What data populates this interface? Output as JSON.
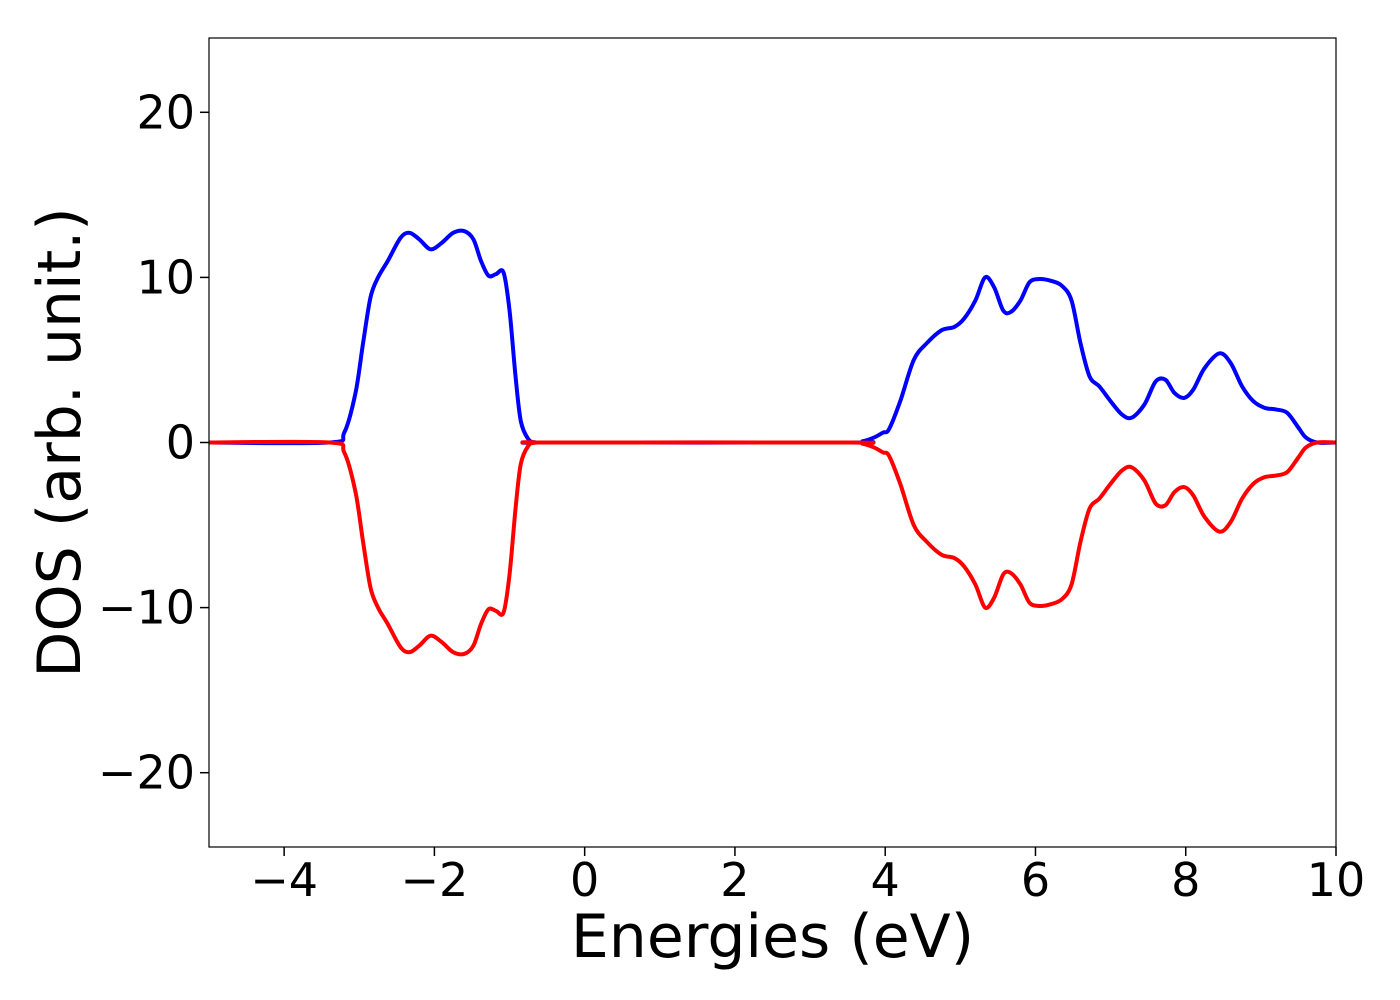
{
  "chart_data": {
    "type": "line",
    "title": "",
    "xlabel": "Energies (eV)",
    "ylabel": "DOS (arb. unit.)",
    "xlim": [
      -5,
      10
    ],
    "ylim": [
      -24.5,
      24.5
    ],
    "x_ticks": [
      -4,
      -2,
      0,
      2,
      4,
      6,
      8,
      10
    ],
    "x_tick_labels": [
      "−4",
      "−2",
      "0",
      "2",
      "4",
      "6",
      "8",
      "10"
    ],
    "y_ticks": [
      -20,
      -10,
      0,
      10,
      20
    ],
    "y_tick_labels": [
      "−20",
      "−10",
      "0",
      "10",
      "20"
    ],
    "grid": false,
    "legend": "none",
    "series": [
      {
        "color": "#0000ff",
        "x": [
          -5.0,
          -3.4,
          -3.2,
          -3.05,
          -2.95,
          -2.85,
          -2.75,
          -2.62,
          -2.45,
          -2.33,
          -2.2,
          -2.05,
          -1.9,
          -1.75,
          -1.6,
          -1.48,
          -1.38,
          -1.28,
          -1.18,
          -1.08,
          -1.0,
          -0.92,
          -0.85,
          -0.75,
          -0.65,
          -0.5,
          3.5,
          3.7,
          3.85,
          3.97,
          4.05,
          4.2,
          4.38,
          4.55,
          4.75,
          4.92,
          5.05,
          5.2,
          5.33,
          5.45,
          5.57,
          5.67,
          5.8,
          5.92,
          6.05,
          6.2,
          6.35,
          6.48,
          6.6,
          6.72,
          6.85,
          7.0,
          7.15,
          7.28,
          7.45,
          7.6,
          7.73,
          7.85,
          7.98,
          8.1,
          8.25,
          8.45,
          8.6,
          8.75,
          8.9,
          9.05,
          9.2,
          9.35,
          9.5,
          9.6,
          9.75,
          10.0
        ],
        "y": [
          0,
          0,
          0.6,
          3.0,
          6.0,
          8.8,
          10.0,
          11.0,
          12.4,
          12.7,
          12.3,
          11.7,
          12.1,
          12.7,
          12.8,
          12.3,
          11.0,
          10.1,
          10.2,
          10.3,
          8.0,
          4.0,
          1.3,
          0.2,
          0,
          0,
          0,
          0.08,
          0.3,
          0.6,
          0.8,
          2.5,
          5.0,
          6.0,
          6.8,
          7.0,
          7.5,
          8.6,
          10.0,
          9.4,
          8.0,
          7.9,
          8.6,
          9.7,
          9.9,
          9.8,
          9.5,
          8.6,
          6.0,
          4.0,
          3.4,
          2.5,
          1.7,
          1.5,
          2.3,
          3.7,
          3.8,
          3.0,
          2.7,
          3.2,
          4.5,
          5.4,
          4.8,
          3.4,
          2.5,
          2.1,
          2.0,
          1.8,
          0.9,
          0.3,
          0,
          0
        ]
      },
      {
        "color": "#ff0000",
        "x": [
          -5.0,
          -3.4,
          -3.2,
          -3.05,
          -2.95,
          -2.85,
          -2.75,
          -2.62,
          -2.45,
          -2.33,
          -2.2,
          -2.05,
          -1.9,
          -1.75,
          -1.6,
          -1.48,
          -1.38,
          -1.28,
          -1.18,
          -1.08,
          -1.0,
          -0.92,
          -0.85,
          -0.75,
          -0.65,
          -0.5,
          3.5,
          3.7,
          3.85,
          3.97,
          4.05,
          4.2,
          4.38,
          4.55,
          4.75,
          4.92,
          5.05,
          5.2,
          5.33,
          5.45,
          5.57,
          5.67,
          5.8,
          5.92,
          6.05,
          6.2,
          6.35,
          6.48,
          6.6,
          6.72,
          6.85,
          7.0,
          7.15,
          7.28,
          7.45,
          7.6,
          7.73,
          7.85,
          7.98,
          8.1,
          8.25,
          8.45,
          8.6,
          8.75,
          8.9,
          9.05,
          9.2,
          9.35,
          9.5,
          9.6,
          9.75,
          10.0
        ],
        "y": [
          0,
          0,
          -0.6,
          -3.0,
          -6.0,
          -8.8,
          -10.0,
          -11.0,
          -12.4,
          -12.7,
          -12.3,
          -11.7,
          -12.1,
          -12.7,
          -12.8,
          -12.3,
          -11.0,
          -10.1,
          -10.2,
          -10.3,
          -8.0,
          -4.0,
          -1.3,
          -0.2,
          0,
          0,
          0,
          -0.08,
          -0.3,
          -0.6,
          -0.8,
          -2.5,
          -5.0,
          -6.0,
          -6.8,
          -7.0,
          -7.5,
          -8.6,
          -10.0,
          -9.4,
          -8.0,
          -7.9,
          -8.6,
          -9.7,
          -9.9,
          -9.8,
          -9.5,
          -8.6,
          -6.0,
          -4.0,
          -3.4,
          -2.5,
          -1.7,
          -1.5,
          -2.3,
          -3.7,
          -3.8,
          -3.0,
          -2.7,
          -3.2,
          -4.5,
          -5.4,
          -4.8,
          -3.4,
          -2.5,
          -2.1,
          -2.0,
          -1.8,
          -0.9,
          -0.3,
          0,
          0
        ]
      }
    ]
  }
}
